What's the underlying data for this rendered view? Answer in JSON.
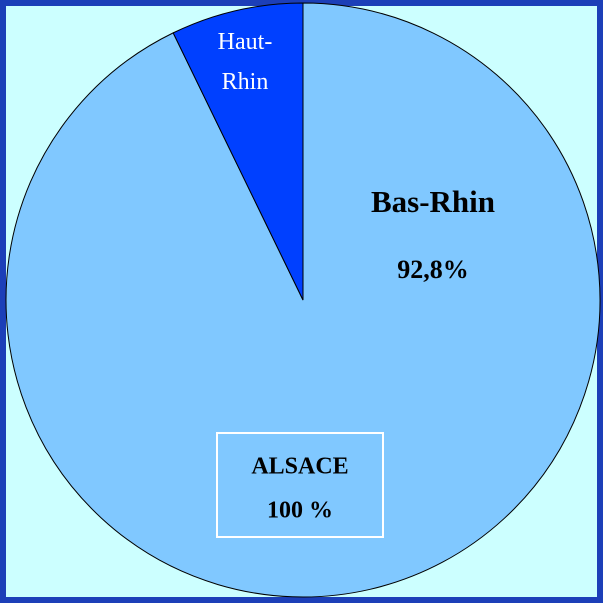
{
  "chart_data": {
    "type": "pie",
    "categories": [
      "Bas-Rhin",
      "Haut-Rhin"
    ],
    "values": [
      92.8,
      7.2
    ],
    "value_labels": [
      "92,8%",
      null
    ],
    "colors": [
      "#80c8ff",
      "#0040ff"
    ],
    "center_box": [
      "ALSACE",
      "100 %"
    ]
  }
}
